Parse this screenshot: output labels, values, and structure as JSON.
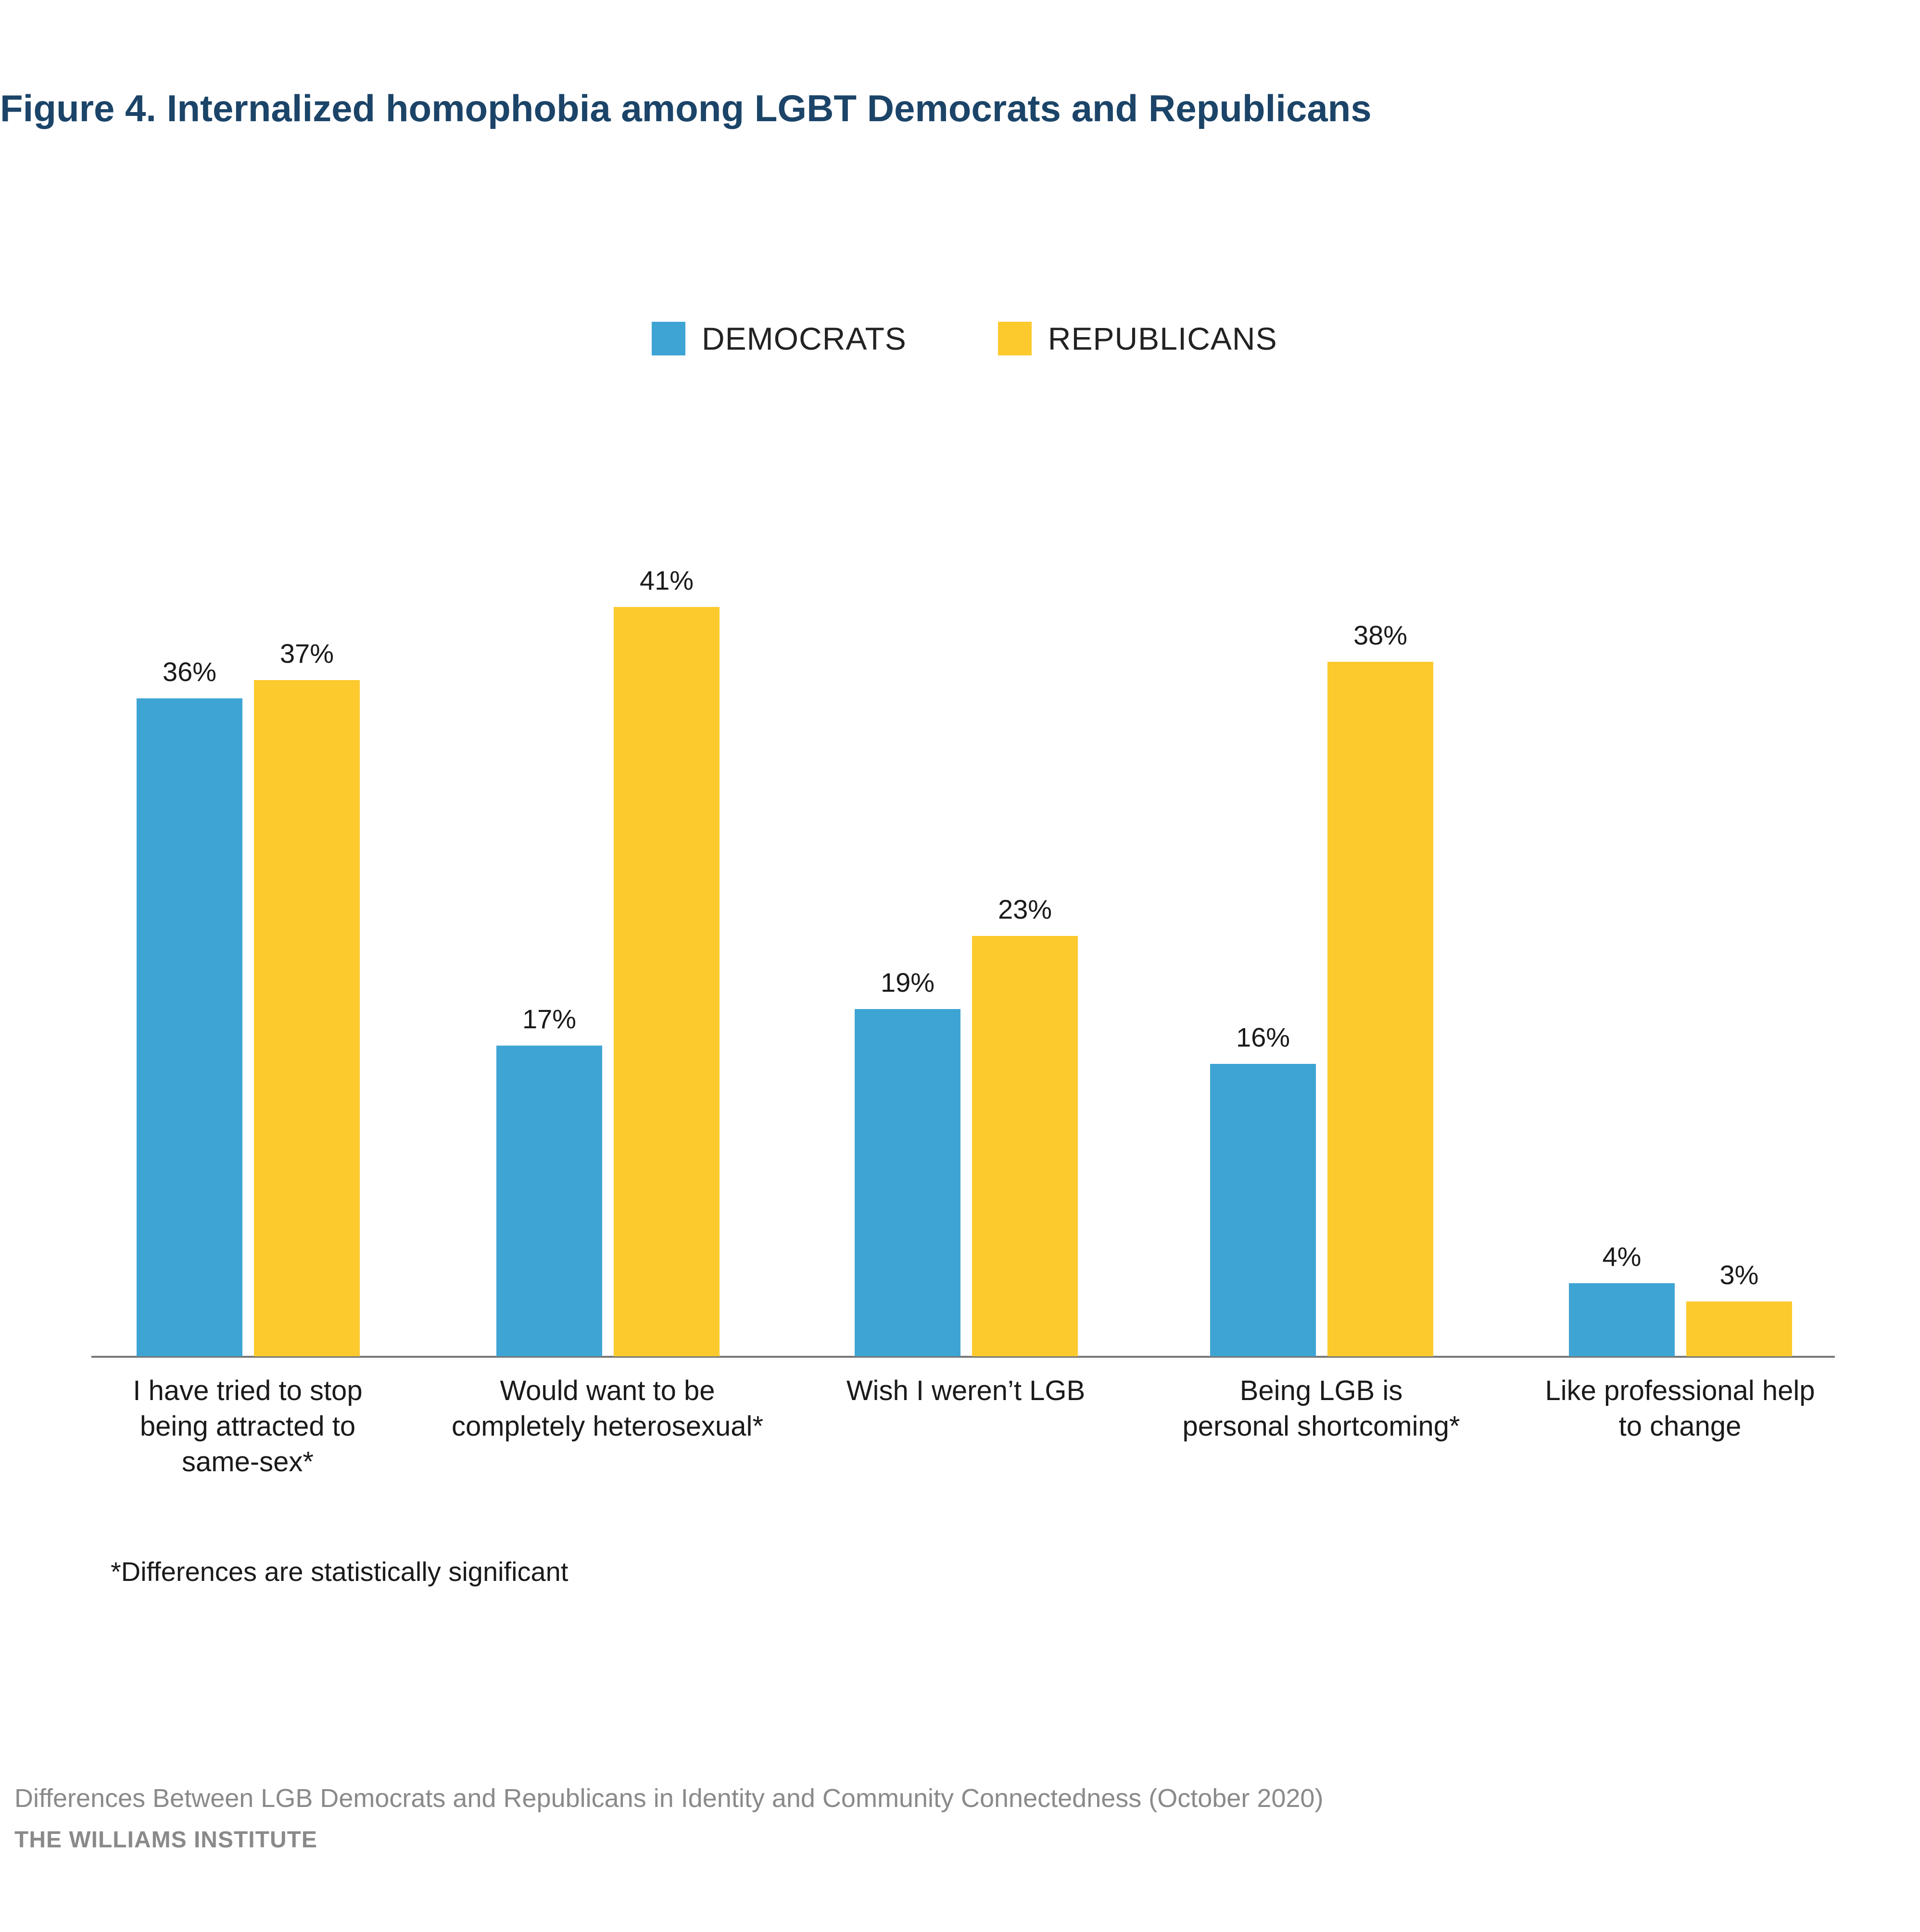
{
  "title": "Figure 4. Internalized homophobia among LGBT Democrats and Republicans",
  "legend": [
    {
      "label": "DEMOCRATS",
      "color": "#3ea4d4"
    },
    {
      "label": "REPUBLICANS",
      "color": "#fdca2d"
    }
  ],
  "chart_data": {
    "type": "bar",
    "title": "Figure 4. Internalized homophobia among LGBT Democrats and Republicans",
    "xlabel": "",
    "ylabel": "",
    "ylim": [
      0,
      41
    ],
    "categories": [
      "I have tried to stop being attracted to same-sex*",
      "Would want to be completely heterosexual*",
      "Wish I weren’t LGB",
      "Being LGB is personal shortcoming*",
      "Like professional help to change"
    ],
    "series": [
      {
        "name": "DEMOCRATS",
        "color": "#3ea4d4",
        "values": [
          36,
          17,
          19,
          16,
          4
        ],
        "labels": [
          "36%",
          "17%",
          "19%",
          "16%",
          "4%"
        ]
      },
      {
        "name": "REPUBLICANS",
        "color": "#fdca2d",
        "values": [
          37,
          41,
          23,
          38,
          3
        ],
        "labels": [
          "37%",
          "41%",
          "23%",
          "38%",
          "3%"
        ]
      }
    ]
  },
  "category_labels": [
    {
      "lines": [
        "I have tried to stop",
        "being attracted to",
        "same-sex*"
      ]
    },
    {
      "lines": [
        "Would want to be",
        "completely heterosexual*"
      ]
    },
    {
      "lines": [
        "Wish I weren’t LGB"
      ]
    },
    {
      "lines": [
        "Being LGB is",
        "personal shortcoming*"
      ]
    },
    {
      "lines": [
        "Like professional help",
        "to change"
      ]
    }
  ],
  "footnote": "*Differences are statistically significant",
  "source": "Differences Between LGB Democrats and Republicans in Identity and Community Connectedness (October 2020)",
  "organization": "THE WILLIAMS INSTITUTE"
}
